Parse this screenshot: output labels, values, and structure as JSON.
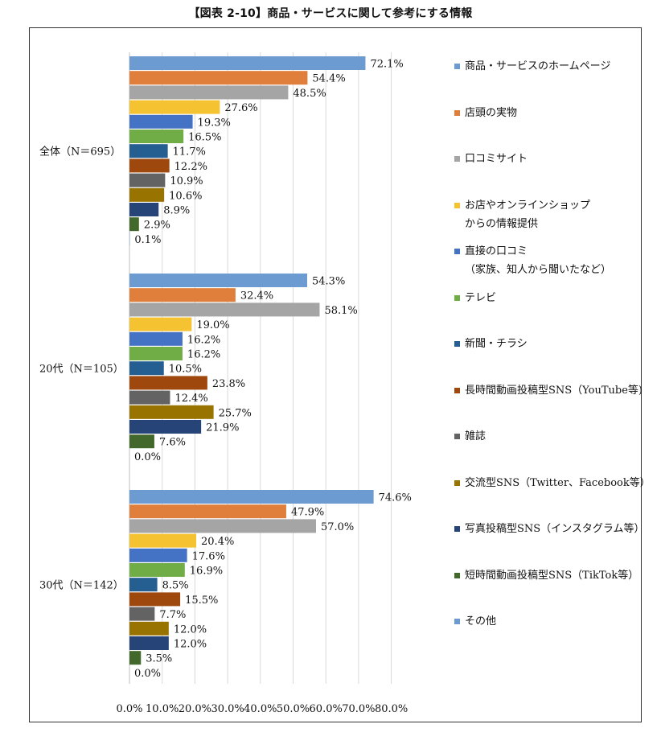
{
  "title": "【図表 2-10】商品・サービスに関して参考にする情報",
  "chart_data": {
    "type": "bar",
    "orientation": "horizontal",
    "categories": [
      "全体（N＝695）",
      "20代（N＝105）",
      "30代（N＝142）"
    ],
    "series": [
      {
        "name": "商品・サービスのホームページ",
        "color": "#6C9BD2",
        "values": [
          72.1,
          54.3,
          74.6
        ]
      },
      {
        "name": "店頭の実物",
        "color": "#E07E3C",
        "values": [
          54.4,
          32.4,
          47.9
        ]
      },
      {
        "name": "口コミサイト",
        "color": "#A5A5A5",
        "values": [
          48.5,
          58.1,
          57.0
        ]
      },
      {
        "name": "お店やオンラインショップからの情報提供",
        "color": "#F5C232",
        "values": [
          27.6,
          19.0,
          20.4
        ]
      },
      {
        "name": "直接の口コミ（家族、知人から聞いたなど）",
        "color": "#4472C4",
        "values": [
          19.3,
          16.2,
          17.6
        ]
      },
      {
        "name": "テレビ",
        "color": "#70AD47",
        "values": [
          16.5,
          16.2,
          16.9
        ]
      },
      {
        "name": "新聞・チラシ",
        "color": "#255E91",
        "values": [
          11.7,
          10.5,
          8.5
        ]
      },
      {
        "name": "長時間動画投稿型SNS（YouTube等)",
        "color": "#9E480E",
        "values": [
          12.2,
          23.8,
          15.5
        ]
      },
      {
        "name": "雑誌",
        "color": "#636363",
        "values": [
          10.9,
          12.4,
          7.7
        ]
      },
      {
        "name": "交流型SNS（Twitter、Facebook等）",
        "color": "#997300",
        "values": [
          10.6,
          25.7,
          12.0
        ]
      },
      {
        "name": "写真投稿型SNS（インスタグラム等）",
        "color": "#264478",
        "values": [
          8.9,
          21.9,
          12.0
        ]
      },
      {
        "name": "短時間動画投稿型SNS（TikTok等）",
        "color": "#43682B",
        "values": [
          2.9,
          7.6,
          3.5
        ]
      },
      {
        "name": "その他",
        "color": "#6C9BD2",
        "values": [
          0.1,
          0.0,
          0.0
        ]
      }
    ],
    "legend_lines": [
      [
        "商品・サービスのホームページ"
      ],
      [
        "店頭の実物"
      ],
      [
        "口コミサイト"
      ],
      [
        "お店やオンラインショップ",
        "からの情報提供"
      ],
      [
        "直接の口コミ",
        "（家族、知人から聞いたなど）"
      ],
      [
        "テレビ"
      ],
      [
        "新聞・チラシ"
      ],
      [
        "長時間動画投稿型SNS（YouTube等)"
      ],
      [
        "雑誌"
      ],
      [
        "交流型SNS（Twitter、Facebook等）"
      ],
      [
        "写真投稿型SNS（インスタグラム等）"
      ],
      [
        "短時間動画投稿型SNS（TikTok等）"
      ],
      [
        "その他"
      ]
    ],
    "xticks": [
      "0.0%",
      "10.0%",
      "20.0%",
      "30.0%",
      "40.0%",
      "50.0%",
      "60.0%",
      "70.0%",
      "80.0%"
    ],
    "xlim": [
      0,
      80
    ],
    "value_suffix": "%",
    "grid": true,
    "legend_position": "right",
    "xlabel": "",
    "ylabel": ""
  }
}
